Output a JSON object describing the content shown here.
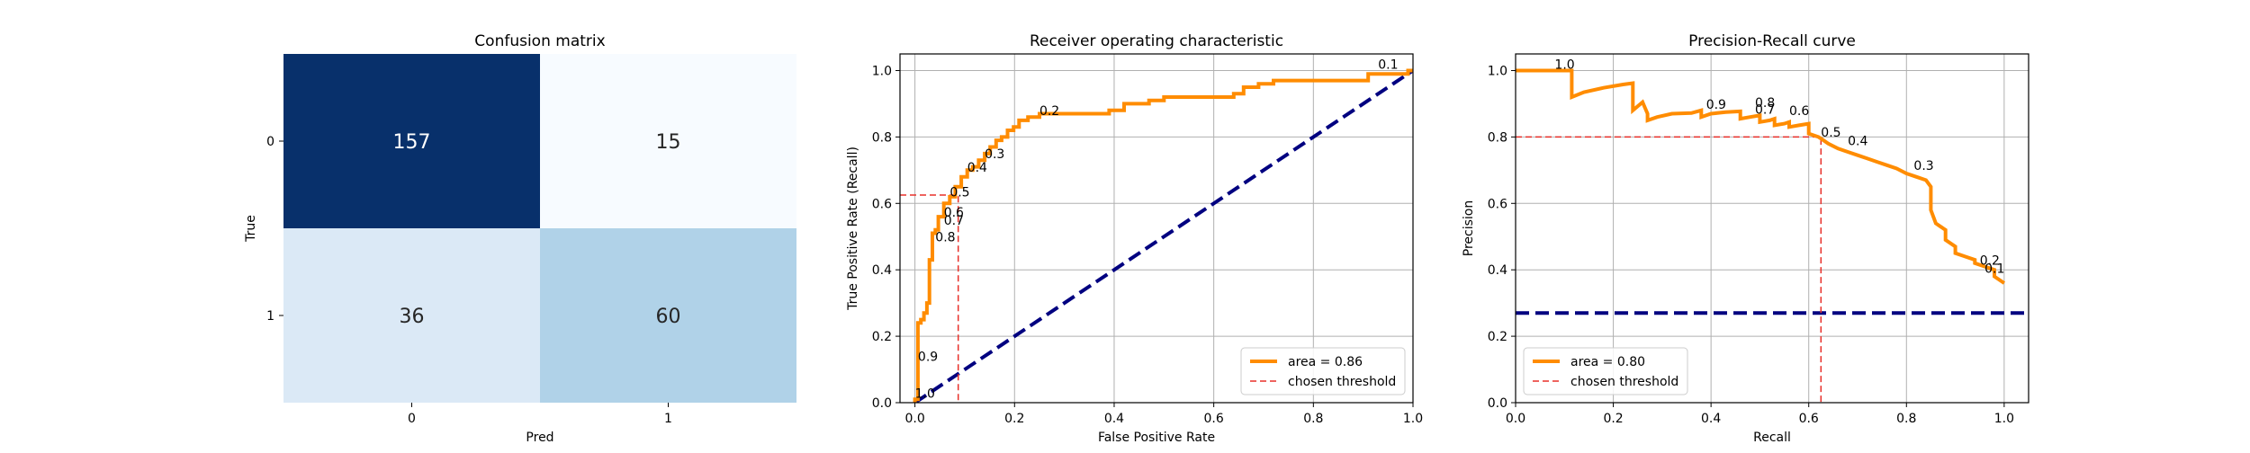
{
  "figure": {
    "chart_data": [
      {
        "type": "heatmap",
        "title": "Confusion matrix",
        "xlabel": "Pred",
        "ylabel": "True",
        "x_ticks": [
          "0",
          "1"
        ],
        "y_ticks": [
          "0",
          "1"
        ],
        "cells": [
          [
            157,
            15
          ],
          [
            36,
            60
          ]
        ],
        "colors": [
          [
            "#08306b",
            "#f7fbff"
          ],
          [
            "#dbe9f6",
            "#b0d2e8"
          ]
        ],
        "text_colors": [
          [
            "#ffffff",
            "#262626"
          ],
          [
            "#262626",
            "#262626"
          ]
        ],
        "grid": false
      },
      {
        "type": "line",
        "title": "Receiver operating characteristic",
        "xlabel": "False Positive Rate",
        "ylabel": "True Positive Rate (Recall)",
        "xlim": [
          -0.03,
          1.0
        ],
        "ylim": [
          0.0,
          1.05
        ],
        "xticks": [
          "0.0",
          "0.2",
          "0.4",
          "0.6",
          "0.8",
          "1.0"
        ],
        "yticks": [
          "0.0",
          "0.2",
          "0.4",
          "0.6",
          "0.8",
          "1.0"
        ],
        "grid": true,
        "legend_position": "lower-right",
        "series": [
          {
            "name": "area = 0.86",
            "color": "#ff8c00",
            "style": "solid",
            "x": [
              0.0,
              0.0,
              0.006,
              0.006,
              0.012,
              0.012,
              0.018,
              0.018,
              0.024,
              0.024,
              0.029,
              0.029,
              0.035,
              0.035,
              0.041,
              0.041,
              0.047,
              0.047,
              0.058,
              0.058,
              0.07,
              0.07,
              0.081,
              0.081,
              0.093,
              0.093,
              0.105,
              0.105,
              0.116,
              0.116,
              0.128,
              0.128,
              0.14,
              0.14,
              0.151,
              0.151,
              0.163,
              0.163,
              0.174,
              0.174,
              0.186,
              0.186,
              0.198,
              0.198,
              0.209,
              0.209,
              0.227,
              0.227,
              0.25,
              0.25,
              0.27,
              0.27,
              0.39,
              0.39,
              0.42,
              0.42,
              0.44,
              0.44,
              0.47,
              0.47,
              0.5,
              0.5,
              0.64,
              0.64,
              0.66,
              0.66,
              0.69,
              0.69,
              0.72,
              0.72,
              0.77,
              0.77,
              0.91,
              0.91,
              0.95,
              0.95,
              0.99,
              0.99,
              1.0
            ],
            "y": [
              0.0,
              0.01,
              0.01,
              0.24,
              0.24,
              0.25,
              0.25,
              0.27,
              0.27,
              0.3,
              0.3,
              0.43,
              0.43,
              0.51,
              0.51,
              0.52,
              0.52,
              0.56,
              0.56,
              0.6,
              0.6,
              0.62,
              0.62,
              0.65,
              0.65,
              0.68,
              0.68,
              0.7,
              0.7,
              0.71,
              0.71,
              0.73,
              0.73,
              0.75,
              0.75,
              0.77,
              0.77,
              0.79,
              0.79,
              0.8,
              0.8,
              0.82,
              0.82,
              0.83,
              0.83,
              0.85,
              0.85,
              0.86,
              0.86,
              0.87,
              0.87,
              0.87,
              0.87,
              0.88,
              0.88,
              0.9,
              0.9,
              0.9,
              0.9,
              0.91,
              0.91,
              0.92,
              0.92,
              0.93,
              0.93,
              0.95,
              0.95,
              0.96,
              0.96,
              0.97,
              0.97,
              0.97,
              0.97,
              0.99,
              0.99,
              0.99,
              0.99,
              1.0,
              1.0
            ]
          },
          {
            "name": "",
            "color": "#000080",
            "style": "dashed",
            "x": [
              0.0,
              1.0
            ],
            "y": [
              0.0,
              1.0
            ]
          },
          {
            "name": "chosen threshold",
            "color": "#e8302a",
            "style": "dashed-thin",
            "x": [
              -0.03,
              0.087,
              0.087
            ],
            "y": [
              0.625,
              0.625,
              0.0
            ]
          }
        ],
        "annotations": [
          {
            "text": "1.0",
            "x": 0.0,
            "y": 0.01
          },
          {
            "text": "0.9",
            "x": 0.006,
            "y": 0.12
          },
          {
            "text": "0.8",
            "x": 0.041,
            "y": 0.48
          },
          {
            "text": "0.7",
            "x": 0.058,
            "y": 0.53
          },
          {
            "text": "0.6",
            "x": 0.058,
            "y": 0.555
          },
          {
            "text": "0.5",
            "x": 0.07,
            "y": 0.615
          },
          {
            "text": "0.4",
            "x": 0.105,
            "y": 0.69
          },
          {
            "text": "0.3",
            "x": 0.14,
            "y": 0.73
          },
          {
            "text": "0.2",
            "x": 0.25,
            "y": 0.86
          },
          {
            "text": "0.1",
            "x": 0.93,
            "y": 1.0
          }
        ]
      },
      {
        "type": "line",
        "title": "Precision-Recall curve",
        "xlabel": "Recall",
        "ylabel": "Precision",
        "xlim": [
          0.0,
          1.05
        ],
        "ylim": [
          0.0,
          1.05
        ],
        "xticks": [
          "0.0",
          "0.2",
          "0.4",
          "0.6",
          "0.8",
          "1.0"
        ],
        "yticks": [
          "0.0",
          "0.2",
          "0.4",
          "0.6",
          "0.8",
          "1.0"
        ],
        "grid": true,
        "legend_position": "lower-left",
        "series": [
          {
            "name": "area = 0.80",
            "color": "#ff8c00",
            "style": "solid",
            "x": [
              0.0,
              0.115,
              0.115,
              0.14,
              0.18,
              0.22,
              0.24,
              0.24,
              0.26,
              0.27,
              0.27,
              0.29,
              0.32,
              0.36,
              0.38,
              0.38,
              0.4,
              0.43,
              0.46,
              0.46,
              0.48,
              0.5,
              0.5,
              0.52,
              0.53,
              0.53,
              0.55,
              0.56,
              0.56,
              0.58,
              0.6,
              0.6,
              0.62,
              0.625,
              0.64,
              0.66,
              0.68,
              0.7,
              0.72,
              0.74,
              0.76,
              0.78,
              0.8,
              0.82,
              0.84,
              0.85,
              0.85,
              0.86,
              0.87,
              0.88,
              0.88,
              0.9,
              0.9,
              0.92,
              0.94,
              0.94,
              0.96,
              0.98,
              0.98,
              1.0
            ],
            "y": [
              1.0,
              1.0,
              0.92,
              0.935,
              0.948,
              0.958,
              0.962,
              0.88,
              0.905,
              0.87,
              0.85,
              0.86,
              0.87,
              0.872,
              0.88,
              0.86,
              0.87,
              0.875,
              0.877,
              0.855,
              0.86,
              0.865,
              0.845,
              0.85,
              0.855,
              0.835,
              0.84,
              0.845,
              0.83,
              0.835,
              0.84,
              0.81,
              0.8,
              0.795,
              0.78,
              0.765,
              0.755,
              0.745,
              0.735,
              0.725,
              0.715,
              0.705,
              0.69,
              0.68,
              0.67,
              0.65,
              0.58,
              0.54,
              0.53,
              0.52,
              0.49,
              0.47,
              0.45,
              0.44,
              0.43,
              0.42,
              0.41,
              0.4,
              0.38,
              0.36
            ]
          },
          {
            "name": "",
            "color": "#000080",
            "style": "dashed",
            "x": [
              0.0,
              1.05
            ],
            "y": [
              0.27,
              0.27
            ]
          },
          {
            "name": "chosen threshold",
            "color": "#e8302a",
            "style": "dashed-thin",
            "x": [
              0.0,
              0.625,
              0.625
            ],
            "y": [
              0.8,
              0.8,
              0.0
            ]
          }
        ],
        "annotations": [
          {
            "text": "1.0",
            "x": 0.08,
            "y": 1.0
          },
          {
            "text": "0.9",
            "x": 0.39,
            "y": 0.88
          },
          {
            "text": "0.8",
            "x": 0.49,
            "y": 0.885
          },
          {
            "text": "0.7",
            "x": 0.49,
            "y": 0.865
          },
          {
            "text": "0.6",
            "x": 0.56,
            "y": 0.86
          },
          {
            "text": "0.5",
            "x": 0.625,
            "y": 0.795
          },
          {
            "text": "0.4",
            "x": 0.68,
            "y": 0.77
          },
          {
            "text": "0.3",
            "x": 0.815,
            "y": 0.695
          },
          {
            "text": "0.2",
            "x": 0.95,
            "y": 0.41
          },
          {
            "text": "0.1",
            "x": 0.96,
            "y": 0.385
          }
        ]
      }
    ]
  }
}
